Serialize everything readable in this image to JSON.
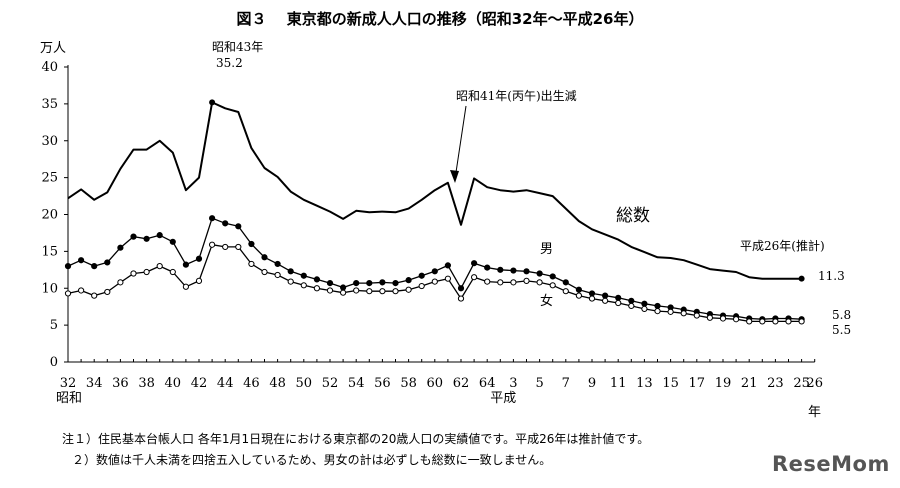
{
  "title": "図３　 東京都の新成人人口の推移（昭和32年～平成26年）",
  "unit": "万人",
  "watermark": "ReseMom",
  "notes": [
    "注１）住民基本台帳人口  各年1月1日現在における東京都の20歳人口の実績値です。平成26年は推計値です。",
    "２）数値は千人未満を四捨五入しているため、男女の計は必ずしも総数に一致しません。"
  ],
  "annotations": {
    "peak_era": "昭和43年",
    "peak_value": "35.2",
    "hinoeuma": "昭和41年(丙午)出生減",
    "estimate_label": "平成26年(推計)"
  },
  "chart_data": {
    "type": "line",
    "title": "図３　 東京都の新成人人口の推移（昭和32年～平成26年）",
    "ylabel": "万人",
    "xlabel": "年",
    "ylim": [
      0,
      40
    ],
    "yticks": [
      0,
      5,
      10,
      15,
      20,
      25,
      30,
      35,
      40
    ],
    "x_index_range": [
      0,
      57
    ],
    "x_ticks": [
      {
        "i": 0,
        "label": "32"
      },
      {
        "i": 2,
        "label": "34"
      },
      {
        "i": 4,
        "label": "36"
      },
      {
        "i": 6,
        "label": "38"
      },
      {
        "i": 8,
        "label": "40"
      },
      {
        "i": 10,
        "label": "42"
      },
      {
        "i": 12,
        "label": "44"
      },
      {
        "i": 14,
        "label": "46"
      },
      {
        "i": 16,
        "label": "48"
      },
      {
        "i": 18,
        "label": "50"
      },
      {
        "i": 20,
        "label": "52"
      },
      {
        "i": 22,
        "label": "54"
      },
      {
        "i": 24,
        "label": "56"
      },
      {
        "i": 26,
        "label": "58"
      },
      {
        "i": 28,
        "label": "60"
      },
      {
        "i": 30,
        "label": "62"
      },
      {
        "i": 32,
        "label": "64"
      },
      {
        "i": 34,
        "label": "3"
      },
      {
        "i": 36,
        "label": "5"
      },
      {
        "i": 38,
        "label": "7"
      },
      {
        "i": 40,
        "label": "9"
      },
      {
        "i": 42,
        "label": "11"
      },
      {
        "i": 44,
        "label": "13"
      },
      {
        "i": 46,
        "label": "15"
      },
      {
        "i": 48,
        "label": "17"
      },
      {
        "i": 50,
        "label": "19"
      },
      {
        "i": 52,
        "label": "21"
      },
      {
        "i": 54,
        "label": "23"
      },
      {
        "i": 56,
        "label": "25"
      },
      {
        "i": 57,
        "label": "26"
      }
    ],
    "era_labels": [
      {
        "i": 0,
        "label": "昭和"
      },
      {
        "i": 33,
        "label": "平成"
      }
    ],
    "series": [
      {
        "name": "総数",
        "marker": "none",
        "values": [
          22.2,
          23.4,
          22.0,
          23.0,
          26.2,
          28.8,
          28.8,
          30.0,
          28.4,
          23.3,
          25.0,
          35.2,
          34.4,
          33.9,
          29.0,
          26.3,
          25.1,
          23.1,
          22.0,
          21.2,
          20.4,
          19.4,
          20.5,
          20.3,
          20.4,
          20.3,
          20.8,
          22.0,
          23.3,
          24.3,
          18.6,
          24.9,
          23.7,
          23.3,
          23.1,
          23.3,
          22.9,
          22.5,
          20.8,
          19.1,
          18.0,
          17.3,
          16.6,
          15.6,
          14.9,
          14.2,
          14.1,
          13.8,
          13.2,
          12.6,
          12.4,
          12.2,
          11.5,
          11.3,
          11.3,
          11.3,
          11.3
        ]
      },
      {
        "name": "男",
        "marker": "filled",
        "values": [
          13.0,
          13.8,
          13.0,
          13.5,
          15.5,
          17.0,
          16.7,
          17.2,
          16.3,
          13.2,
          14.0,
          19.5,
          18.8,
          18.4,
          16.0,
          14.2,
          13.3,
          12.3,
          11.7,
          11.2,
          10.7,
          10.1,
          10.7,
          10.7,
          10.8,
          10.7,
          11.1,
          11.7,
          12.3,
          13.1,
          10.0,
          13.4,
          12.8,
          12.5,
          12.4,
          12.3,
          12.0,
          11.6,
          10.8,
          9.8,
          9.3,
          9.0,
          8.7,
          8.3,
          7.9,
          7.6,
          7.4,
          7.1,
          6.8,
          6.5,
          6.3,
          6.2,
          5.9,
          5.8,
          5.9,
          5.9,
          5.8
        ]
      },
      {
        "name": "女",
        "marker": "open",
        "values": [
          9.3,
          9.7,
          9.0,
          9.5,
          10.8,
          12.0,
          12.2,
          13.0,
          12.2,
          10.2,
          11.0,
          15.9,
          15.6,
          15.6,
          13.3,
          12.2,
          11.8,
          10.9,
          10.4,
          10.0,
          9.7,
          9.4,
          9.7,
          9.6,
          9.6,
          9.6,
          9.8,
          10.3,
          10.9,
          11.3,
          8.6,
          11.5,
          10.9,
          10.8,
          10.8,
          11.0,
          10.8,
          10.4,
          9.6,
          9.0,
          8.6,
          8.3,
          8.0,
          7.6,
          7.2,
          6.9,
          6.8,
          6.6,
          6.3,
          6.0,
          5.9,
          5.8,
          5.5,
          5.5,
          5.5,
          5.5,
          5.5
        ]
      }
    ],
    "end_labels": [
      "11.3",
      "5.8",
      "5.5"
    ],
    "grid": false
  }
}
